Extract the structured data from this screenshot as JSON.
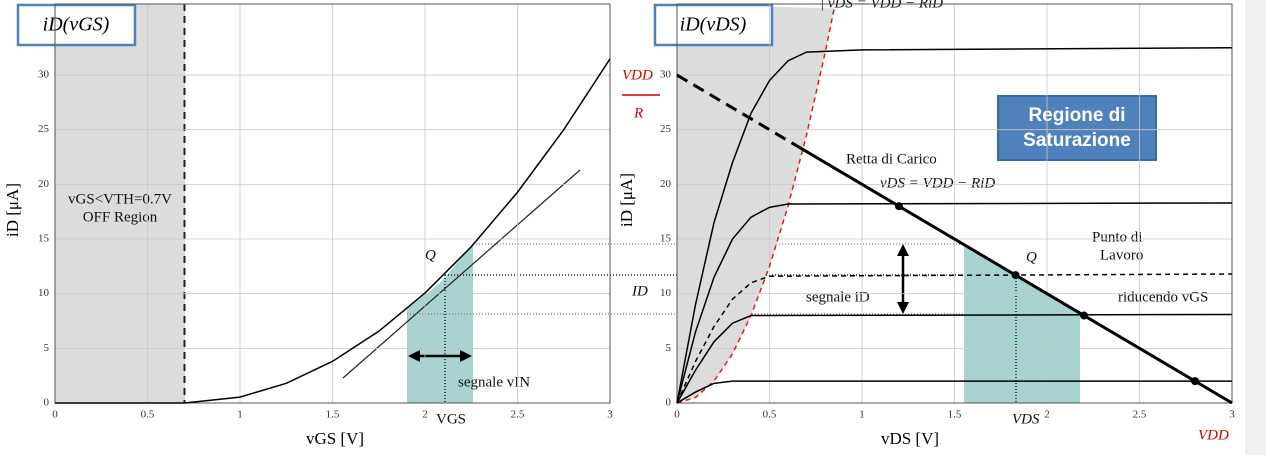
{
  "chart_data": [
    {
      "type": "line",
      "title": "iD(vGS)",
      "xlabel": "vGS [V]",
      "ylabel": "iD [μA]",
      "xlim": [
        0,
        3
      ],
      "ylim": [
        0,
        36.5
      ],
      "xticks": [
        0,
        0.5,
        1,
        1.5,
        2,
        2.5,
        3
      ],
      "yticks": [
        0,
        5,
        10,
        15,
        20,
        25,
        30
      ],
      "grid": true,
      "series": [
        {
          "color": "#000000",
          "x": [
            0,
            0.5,
            0.7,
            1,
            1.25,
            1.5,
            1.75,
            2,
            2.25,
            2.5,
            2.75,
            3
          ],
          "values": [
            0,
            0,
            0,
            0.54,
            1.8,
            3.81,
            6.56,
            10.06,
            14.29,
            19.28,
            25.0,
            31.48
          ]
        }
      ],
      "annotations": [
        "vGS<VTH=0.7V",
        "OFF Region",
        "Q",
        "segnale vIN",
        "VGS"
      ]
    },
    {
      "type": "line",
      "title": "iD(vDS)",
      "xlabel": "vDS [V]",
      "ylabel": "iD [μA]",
      "xlim": [
        0,
        3
      ],
      "ylim": [
        0,
        36.5
      ],
      "xticks": [
        0,
        0.5,
        1,
        1.5,
        2,
        2.5,
        3
      ],
      "yticks": [
        0,
        5,
        10,
        15,
        20,
        25,
        30
      ],
      "grid": true,
      "series": [
        {
          "color": "#e31a1c",
          "dash": true,
          "fill": "#dcdcdc",
          "x": [
            0,
            0.1,
            0.2,
            0.3,
            0.4,
            0.5,
            0.6,
            0.7,
            0.8,
            0.85
          ],
          "values": [
            0,
            0.5,
            2,
            4.5,
            8,
            12.5,
            18,
            24.5,
            32,
            36.1
          ]
        },
        {
          "color": "#000000",
          "x": [
            0,
            0.1,
            0.2,
            0.3,
            0.4,
            0.5,
            0.6,
            0.7,
            1,
            3
          ],
          "values": [
            0,
            9,
            16.5,
            22,
            26.5,
            29.5,
            31.3,
            32.1,
            32.3,
            32.5
          ]
        },
        {
          "color": "#000000",
          "x": [
            0,
            0.1,
            0.2,
            0.3,
            0.4,
            0.5,
            0.6,
            3
          ],
          "values": [
            0,
            6.5,
            11.5,
            15,
            17,
            17.9,
            18.2,
            18.3
          ]
        },
        {
          "color": "#000000",
          "dash": true,
          "x": [
            0,
            0.1,
            0.2,
            0.3,
            0.4,
            0.5,
            3
          ],
          "values": [
            0,
            3.8,
            7,
            9.5,
            11,
            11.6,
            11.8
          ]
        },
        {
          "color": "#000000",
          "x": [
            0,
            0.1,
            0.2,
            0.3,
            0.4,
            3
          ],
          "values": [
            0,
            3,
            5.6,
            7.3,
            8,
            8.1
          ]
        },
        {
          "color": "#000000",
          "x": [
            0,
            0.1,
            0.2,
            0.3,
            3
          ],
          "values": [
            0,
            1,
            1.8,
            2,
            2
          ]
        },
        {
          "color": "#000000",
          "dash": true,
          "bold": true,
          "x": [
            0,
            0.66
          ],
          "values": [
            30,
            23.4
          ]
        },
        {
          "color": "#000000",
          "bold": true,
          "x": [
            0.66,
            3
          ],
          "values": [
            23.4,
            0
          ]
        }
      ],
      "points": {
        "color": "#000000",
        "x": [
          1.2,
          1.83,
          2.2,
          2.8
        ],
        "values": [
          18,
          11.7,
          8,
          2
        ]
      },
      "annotations": [
        "VDD",
        "R",
        "Retta di Carico",
        "vDS = VDD − RiD",
        "Punto di",
        "Lavoro",
        "Q",
        "ID",
        "segnale iD",
        "riducendo vGS",
        "VDS",
        "VDD",
        "Regione di",
        "Saturazione",
        "| vDS = VDD − RiD"
      ]
    }
  ]
}
